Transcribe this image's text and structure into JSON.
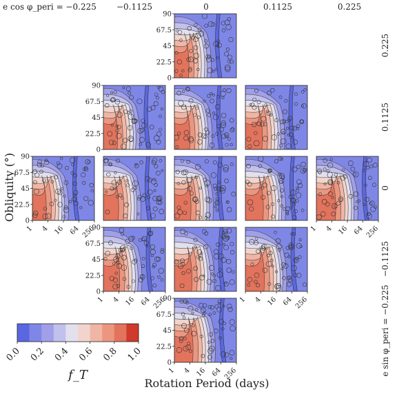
{
  "chart_data": {
    "type": "heatmap",
    "panel_layout": "diamond grid of 13 contour panels indexed by (e cos φ_peri, e sin φ_peri)",
    "column_labels": [
      "e cos φ_peri = −0.225",
      "−0.1125",
      "0",
      "0.1125",
      "0.225"
    ],
    "row_labels": [
      "0.225",
      "0.1125",
      "0",
      "−0.1125",
      "e sin φ_peri = −0.225"
    ],
    "x_values": [
      -0.225,
      -0.1125,
      0,
      0.1125,
      0.225
    ],
    "y_values": [
      0.225,
      0.1125,
      0,
      -0.1125,
      -0.225
    ],
    "panels": [
      {
        "col": 2,
        "row": 0,
        "show_y_ticks": true,
        "show_x_ticks": false
      },
      {
        "col": 1,
        "row": 1,
        "show_y_ticks": true,
        "show_x_ticks": false
      },
      {
        "col": 2,
        "row": 1,
        "show_y_ticks": false,
        "show_x_ticks": false
      },
      {
        "col": 3,
        "row": 1,
        "show_y_ticks": false,
        "show_x_ticks": false
      },
      {
        "col": 0,
        "row": 2,
        "show_y_ticks": true,
        "show_x_ticks": true
      },
      {
        "col": 1,
        "row": 2,
        "show_y_ticks": false,
        "show_x_ticks": false
      },
      {
        "col": 2,
        "row": 2,
        "show_y_ticks": false,
        "show_x_ticks": false
      },
      {
        "col": 3,
        "row": 2,
        "show_y_ticks": false,
        "show_x_ticks": false
      },
      {
        "col": 4,
        "row": 2,
        "show_y_ticks": false,
        "show_x_ticks": true
      },
      {
        "col": 1,
        "row": 3,
        "show_y_ticks": true,
        "show_x_ticks": true
      },
      {
        "col": 2,
        "row": 3,
        "show_y_ticks": false,
        "show_x_ticks": false
      },
      {
        "col": 3,
        "row": 3,
        "show_y_ticks": false,
        "show_x_ticks": true
      },
      {
        "col": 2,
        "row": 4,
        "show_y_ticks": true,
        "show_x_ticks": true
      }
    ],
    "x_axis": {
      "label": "Rotation Period (days)",
      "scale": "log2",
      "range": [
        1,
        256
      ],
      "ticks": [
        "1",
        "4",
        "16",
        "64",
        "256"
      ]
    },
    "y_axis": {
      "label": "Obliquity (°)",
      "range": [
        0,
        90
      ],
      "ticks": [
        "0",
        "22.5",
        "45",
        "67.5",
        "90"
      ]
    },
    "colorbar": {
      "label": "f_T",
      "range": [
        0.0,
        1.0
      ],
      "ticks": [
        "0.0",
        "0.2",
        "0.4",
        "0.6",
        "0.8",
        "1.0"
      ],
      "colors": [
        "#5b67e0",
        "#7f87e6",
        "#a09fe8",
        "#c2c0ec",
        "#e3e0ee",
        "#f2d4cc",
        "#f0b6a5",
        "#ec967f",
        "#e2735c",
        "#cf3a2b"
      ]
    },
    "grid": false,
    "legend": "colorbar bottom-left"
  }
}
